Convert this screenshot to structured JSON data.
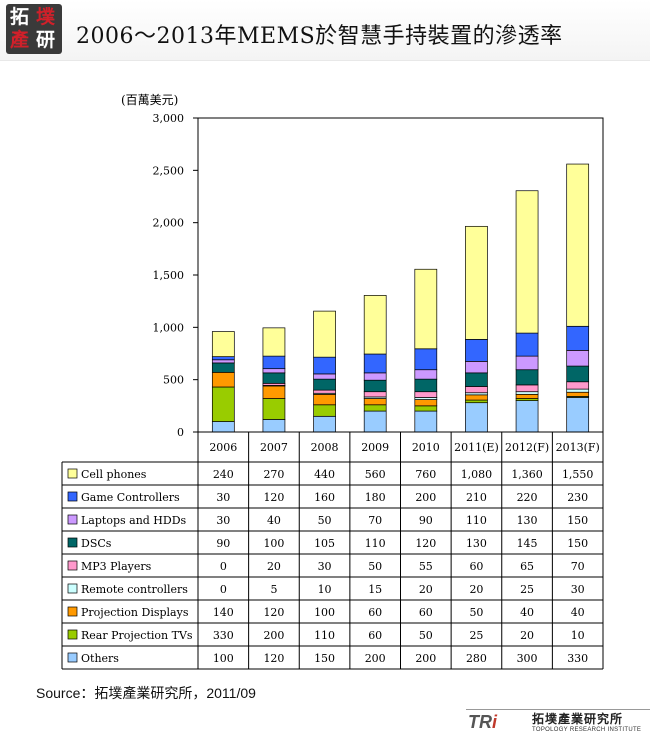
{
  "header": {
    "logo_chars": [
      "拓",
      "墣",
      "產",
      "研"
    ],
    "title": "2006～2013年MEMS於智慧手持裝置的滲透率"
  },
  "colors": {
    "axis": "#000000",
    "chart_bg": "#ffffff"
  },
  "chart_data": {
    "type": "bar",
    "stacked": true,
    "title": "2006～2013年MEMS於智慧手持裝置的滲透率",
    "ylabel": "(百萬美元)",
    "xlabel": "",
    "ylim": [
      0,
      3000
    ],
    "yticks": [
      0,
      500,
      1000,
      1500,
      2000,
      2500,
      3000
    ],
    "ytick_labels": [
      "0",
      "500",
      "1,000",
      "1,500",
      "2,000",
      "2,500",
      "3,000"
    ],
    "grid": false,
    "legend": "data-table",
    "categories": [
      "2006",
      "2007",
      "2008",
      "2009",
      "2010",
      "2011(E)",
      "2012(F)",
      "2013(F)"
    ],
    "series": [
      {
        "name": "Cell phones",
        "color": "#ffff99",
        "values": [
          240,
          270,
          440,
          560,
          760,
          1080,
          1360,
          1550
        ],
        "labels": [
          "240",
          "270",
          "440",
          "560",
          "760",
          "1,080",
          "1,360",
          "1,550"
        ]
      },
      {
        "name": "Game Controllers",
        "color": "#3366ff",
        "values": [
          30,
          120,
          160,
          180,
          200,
          210,
          220,
          230
        ],
        "labels": [
          "30",
          "120",
          "160",
          "180",
          "200",
          "210",
          "220",
          "230"
        ]
      },
      {
        "name": "Laptops and HDDs",
        "color": "#cc99ff",
        "values": [
          30,
          40,
          50,
          70,
          90,
          110,
          130,
          150
        ],
        "labels": [
          "30",
          "40",
          "50",
          "70",
          "90",
          "110",
          "130",
          "150"
        ]
      },
      {
        "name": "DSCs",
        "color": "#006666",
        "values": [
          90,
          100,
          105,
          110,
          120,
          130,
          145,
          150
        ],
        "labels": [
          "90",
          "100",
          "105",
          "110",
          "120",
          "130",
          "145",
          "150"
        ]
      },
      {
        "name": "MP3 Players",
        "color": "#ff99cc",
        "values": [
          0,
          20,
          30,
          50,
          55,
          60,
          65,
          70
        ],
        "labels": [
          "0",
          "20",
          "30",
          "50",
          "55",
          "60",
          "65",
          "70"
        ]
      },
      {
        "name": "Remote controllers",
        "color": "#ccffff",
        "values": [
          0,
          5,
          10,
          15,
          20,
          20,
          25,
          30
        ],
        "labels": [
          "0",
          "5",
          "10",
          "15",
          "20",
          "20",
          "25",
          "30"
        ]
      },
      {
        "name": "Projection Displays",
        "color": "#ff9900",
        "values": [
          140,
          120,
          100,
          60,
          60,
          50,
          40,
          40
        ],
        "labels": [
          "140",
          "120",
          "100",
          "60",
          "60",
          "50",
          "40",
          "40"
        ]
      },
      {
        "name": "Rear Projection TVs",
        "color": "#99cc00",
        "values": [
          330,
          200,
          110,
          60,
          50,
          25,
          20,
          10
        ],
        "labels": [
          "330",
          "200",
          "110",
          "60",
          "50",
          "25",
          "20",
          "10"
        ]
      },
      {
        "name": "Others",
        "color": "#99ccff",
        "values": [
          100,
          120,
          150,
          200,
          200,
          280,
          300,
          330
        ],
        "labels": [
          "100",
          "120",
          "150",
          "200",
          "200",
          "280",
          "300",
          "330"
        ]
      }
    ]
  },
  "footer": {
    "source": "Source：拓墣產業研究所，2011/09",
    "brand_letters": "TR",
    "brand_i": "i",
    "brand_cn": "拓墣產業研究所",
    "brand_en": "TOPOLOGY RESEARCH INSTITUTE"
  }
}
